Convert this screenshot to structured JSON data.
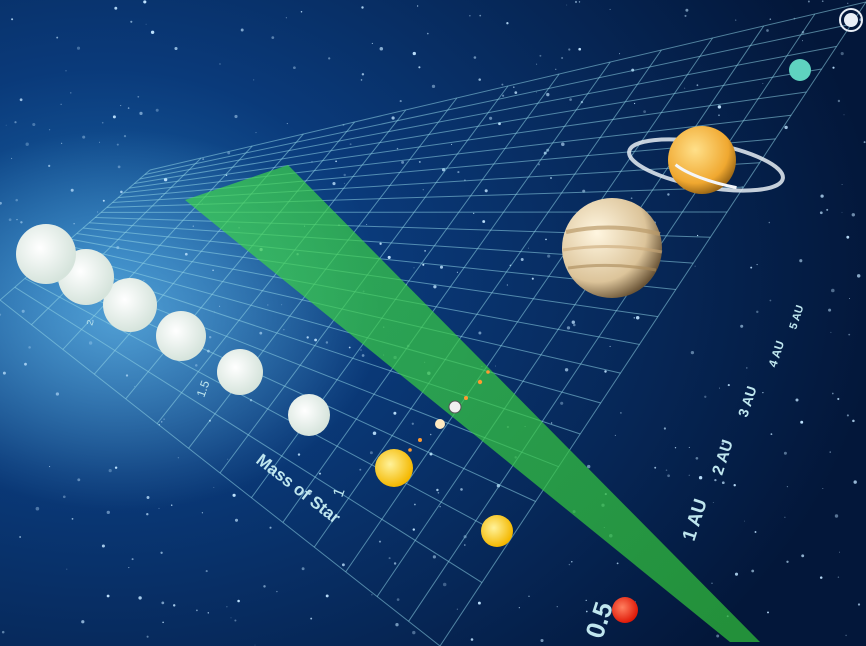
{
  "axis_mass": {
    "title": "Mass of Star",
    "ticks": [
      "0.5",
      "1",
      "1.5",
      "2"
    ]
  },
  "axis_distance": {
    "ticks": [
      "1 AU",
      "2 AU",
      "3 AU",
      "4 AU",
      "5 AU"
    ]
  },
  "colors": {
    "space_dark": "#03173a",
    "space_mid": "#0a3a7a",
    "glow": "#3aa6e0",
    "grid": "#8fd4e6",
    "habitable_zone": "#3fd94a"
  },
  "stars": [
    {
      "mass": 0.5,
      "color": "#ff3a1a"
    },
    {
      "mass": 0.75,
      "color": "#ffd21c"
    },
    {
      "mass": 1.0,
      "color": "#ffe65a"
    },
    {
      "mass": 1.25,
      "color": "#ffffff"
    },
    {
      "mass": 1.5,
      "color": "#e8f2ea"
    },
    {
      "mass": 1.75,
      "color": "#e2efe6"
    },
    {
      "mass": 2.0,
      "color": "#ffffff"
    },
    {
      "mass": 2.25,
      "color": "#e4efe6"
    },
    {
      "mass": 2.5,
      "color": "#e4efe6"
    }
  ],
  "planets": [
    {
      "name": "jupiter",
      "color": "#e8d6b0",
      "ringed": false
    },
    {
      "name": "saturn",
      "color": "#f3b540",
      "ringed": true
    },
    {
      "name": "uranus",
      "color": "#5fd3c0",
      "ringed": false
    },
    {
      "name": "neptune",
      "color": "#e8eef6",
      "ringed": true
    }
  ]
}
